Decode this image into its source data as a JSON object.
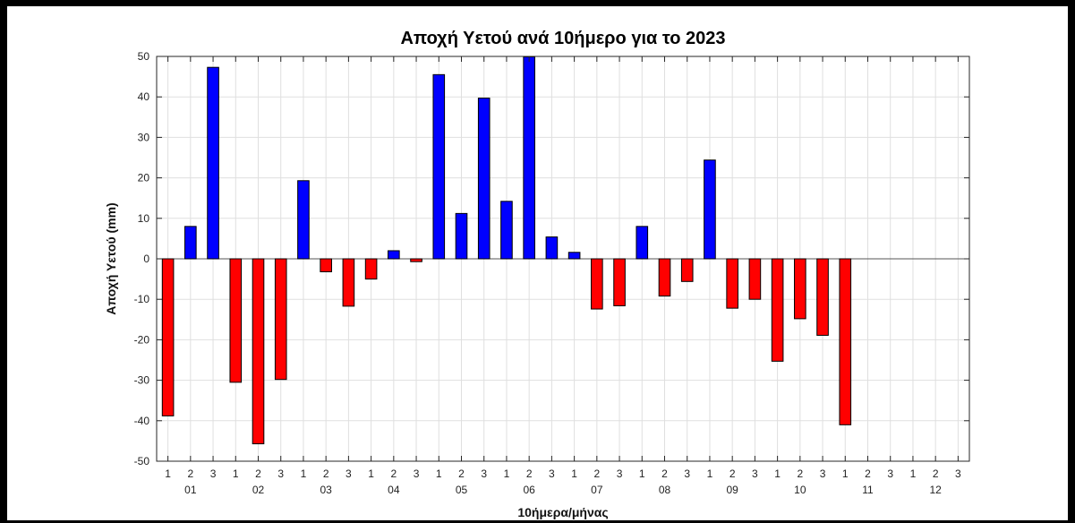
{
  "chart_data": {
    "type": "bar",
    "title": "Αποχή Υετού ανά 10ήμερο για το 2023",
    "xlabel": "10ήμερα/μήνας",
    "ylabel": "Αποχή Υετού (mm)",
    "ylim": [
      -50,
      50
    ],
    "yticks": [
      -50,
      -40,
      -30,
      -20,
      -10,
      0,
      10,
      20,
      30,
      40,
      50
    ],
    "grid": true,
    "legend": "none",
    "dekad_labels": [
      "1",
      "2",
      "3",
      "1",
      "2",
      "3",
      "1",
      "2",
      "3",
      "1",
      "2",
      "3",
      "1",
      "2",
      "3",
      "1",
      "2",
      "3",
      "1",
      "2",
      "3",
      "1",
      "2",
      "3",
      "1",
      "2",
      "3",
      "1",
      "2",
      "3",
      "1",
      "2",
      "3",
      "1",
      "2",
      "3"
    ],
    "months": [
      "01",
      "02",
      "03",
      "04",
      "05",
      "06",
      "07",
      "08",
      "09",
      "10",
      "11",
      "12"
    ],
    "values": [
      -38.8,
      8.0,
      47.3,
      -30.5,
      -45.7,
      -29.8,
      19.3,
      -3.2,
      -11.7,
      -5.0,
      2.0,
      -0.7,
      45.5,
      11.2,
      39.7,
      14.2,
      49.9,
      5.4,
      1.6,
      -12.4,
      -11.6,
      8.0,
      -9.2,
      -5.6,
      24.4,
      -12.2,
      -10.0,
      -25.3,
      -14.8,
      -18.9,
      -41.0,
      null,
      null,
      null,
      null,
      null
    ],
    "positive_color": "#0000ff",
    "negative_color": "#ff0000"
  }
}
